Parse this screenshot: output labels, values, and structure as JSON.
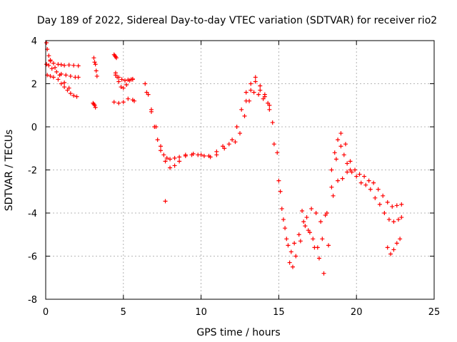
{
  "chart_data": {
    "type": "scatter",
    "title": "Day 189 of 2022, Sidereal Day-to-day VTEC variation (SDTVAR) for receiver rio2",
    "xlabel": "GPS time / hours",
    "ylabel": "SDTVAR / TECUs",
    "xlim": [
      0,
      25
    ],
    "ylim": [
      -8,
      4
    ],
    "x_ticks": [
      "0",
      "5",
      "10",
      "15",
      "20",
      "25"
    ],
    "y_ticks": [
      "-8",
      "-6",
      "-4",
      "-2",
      "0",
      "2",
      "4"
    ],
    "grid": true,
    "marker": "+",
    "color": "#ff0000",
    "series": [
      {
        "name": "s1",
        "x": [
          0.05,
          0.1,
          0.2,
          0.3,
          0.5,
          0.8,
          1.0,
          1.2,
          1.5,
          1.8,
          2.1
        ],
        "y": [
          3.9,
          3.6,
          3.3,
          3.05,
          2.95,
          2.9,
          2.88,
          2.85,
          2.87,
          2.85,
          2.83
        ]
      },
      {
        "name": "s2",
        "x": [
          0.05,
          0.2,
          0.4,
          0.7,
          1.0,
          1.3,
          1.6,
          1.9,
          2.1
        ],
        "y": [
          2.9,
          2.85,
          2.7,
          2.55,
          2.45,
          2.4,
          2.35,
          2.3,
          2.3
        ]
      },
      {
        "name": "s3",
        "x": [
          0.1,
          0.3,
          0.5,
          0.8,
          1.0,
          1.2,
          1.4,
          1.6,
          1.8,
          2.0
        ],
        "y": [
          2.4,
          2.35,
          2.3,
          2.2,
          2.0,
          1.85,
          1.7,
          1.55,
          1.45,
          1.4
        ]
      },
      {
        "name": "s4",
        "x": [
          0.3,
          0.6,
          0.9,
          1.2,
          1.5
        ],
        "y": [
          3.1,
          2.75,
          2.4,
          2.05,
          1.8
        ]
      },
      {
        "name": "s5",
        "x": [
          3.1,
          3.15,
          3.2,
          3.25,
          3.3
        ],
        "y": [
          3.2,
          3.0,
          2.9,
          2.6,
          2.35
        ]
      },
      {
        "name": "s6",
        "x": [
          3.05,
          3.1,
          3.15,
          3.2
        ],
        "y": [
          1.1,
          1.05,
          1.0,
          0.9
        ]
      },
      {
        "name": "s7",
        "x": [
          4.4,
          4.45,
          4.5,
          4.55
        ],
        "y": [
          3.35,
          3.3,
          3.25,
          3.2
        ]
      },
      {
        "name": "s8",
        "x": [
          4.5,
          4.6,
          4.7,
          4.85,
          5.0,
          5.2,
          5.4,
          5.6
        ],
        "y": [
          2.5,
          2.3,
          2.1,
          1.85,
          1.8,
          1.95,
          2.15,
          2.2
        ]
      },
      {
        "name": "s9",
        "x": [
          4.5,
          4.7,
          4.9,
          5.1,
          5.3,
          5.5,
          5.6
        ],
        "y": [
          2.4,
          2.3,
          2.2,
          2.15,
          2.18,
          2.2,
          2.22
        ]
      },
      {
        "name": "s10",
        "x": [
          4.4,
          4.7,
          5.0,
          5.3,
          5.6,
          5.7
        ],
        "y": [
          1.15,
          1.1,
          1.15,
          1.3,
          1.25,
          1.2
        ]
      },
      {
        "name": "s11",
        "x": [
          6.4,
          6.6,
          6.8,
          7.0,
          7.2,
          7.4,
          7.6,
          7.8,
          8.0,
          8.3,
          8.6,
          9.0,
          9.5,
          10.0,
          10.5,
          11.0,
          11.5,
          12.0,
          12.3,
          12.6,
          12.9,
          13.2,
          13.5,
          13.8,
          14.1,
          14.4,
          14.7,
          15.0,
          15.2,
          15.4,
          15.6,
          15.8,
          16.0,
          16.3,
          16.6,
          16.9,
          17.2,
          17.5,
          17.8,
          18.1,
          18.4,
          18.7,
          19.0,
          19.3,
          19.6,
          19.9,
          20.2,
          20.5,
          20.8,
          21.1,
          21.4,
          21.7,
          22.0,
          22.3,
          22.6,
          22.9
        ],
        "y": [
          2.0,
          1.5,
          0.7,
          0.0,
          -0.6,
          -1.1,
          -1.3,
          -1.45,
          -1.5,
          -1.45,
          -1.4,
          -1.3,
          -1.25,
          -1.3,
          -1.35,
          -1.3,
          -1.0,
          -0.6,
          0.0,
          0.8,
          1.6,
          2.0,
          2.1,
          1.7,
          1.4,
          0.8,
          -0.8,
          -2.5,
          -3.8,
          -4.7,
          -5.5,
          -5.8,
          -5.4,
          -5.0,
          -4.4,
          -4.8,
          -5.2,
          -5.6,
          -5.2,
          -4.0,
          -2.8,
          -1.5,
          -0.3,
          -0.8,
          -1.6,
          -2.0,
          -2.2,
          -2.3,
          -2.5,
          -2.6,
          -2.9,
          -3.2,
          -3.5,
          -3.7,
          -3.65,
          -3.6
        ]
      },
      {
        "name": "s12",
        "x": [
          6.5,
          6.8,
          7.1,
          7.4,
          7.7,
          8.0,
          8.3,
          8.6,
          9.0,
          9.4,
          9.8,
          10.2,
          10.6,
          11.0,
          11.4,
          11.8,
          12.2,
          12.5,
          12.8,
          13.1,
          13.4,
          13.7,
          14.0,
          14.3,
          14.6,
          14.9,
          15.1,
          15.3,
          15.5,
          15.7,
          15.9,
          16.1,
          16.4,
          16.7,
          17.0,
          17.3,
          17.6,
          17.9,
          18.2,
          18.5,
          18.8,
          19.1,
          19.4,
          19.7,
          20.0,
          20.3,
          20.6,
          20.9,
          21.2,
          21.5,
          21.8,
          22.1,
          22.4,
          22.7,
          22.9
        ],
        "y": [
          1.6,
          0.8,
          0.0,
          -0.9,
          -1.6,
          -1.9,
          -1.8,
          -1.6,
          -1.35,
          -1.3,
          -1.3,
          -1.35,
          -1.4,
          -1.15,
          -0.9,
          -0.8,
          -0.7,
          -0.3,
          0.5,
          1.2,
          1.6,
          1.5,
          1.3,
          1.1,
          0.2,
          -1.2,
          -3.0,
          -4.3,
          -5.2,
          -6.3,
          -6.5,
          -6.0,
          -5.3,
          -4.6,
          -4.9,
          -5.6,
          -6.1,
          -6.8,
          -5.5,
          -3.2,
          -2.5,
          -2.4,
          -2.1,
          -2.1,
          -2.3,
          -2.6,
          -2.7,
          -2.9,
          -3.3,
          -3.6,
          -4.0,
          -4.3,
          -4.4,
          -4.3,
          -4.2
        ]
      },
      {
        "name": "s13",
        "x": [
          12.9,
          13.2,
          13.5,
          13.8,
          14.1,
          14.4
        ],
        "y": [
          1.2,
          1.7,
          2.3,
          1.9,
          1.5,
          1.0
        ]
      },
      {
        "name": "s14",
        "x": [
          16.5,
          16.8,
          17.1,
          17.4,
          17.7,
          18.0
        ],
        "y": [
          -3.9,
          -4.2,
          -3.8,
          -4.0,
          -4.4,
          -4.1
        ]
      },
      {
        "name": "s15",
        "x": [
          18.4,
          18.6,
          18.8,
          19.0,
          19.2,
          19.4,
          19.6
        ],
        "y": [
          -2.0,
          -1.2,
          -0.6,
          -0.9,
          -1.3,
          -1.7,
          -2.0
        ]
      },
      {
        "name": "s16",
        "x": [
          22.0,
          22.2,
          22.4,
          22.6,
          22.8
        ],
        "y": [
          -5.6,
          -5.9,
          -5.7,
          -5.4,
          -5.2
        ]
      },
      {
        "name": "s17",
        "x": [
          7.7
        ],
        "y": [
          -3.45
        ]
      }
    ]
  }
}
